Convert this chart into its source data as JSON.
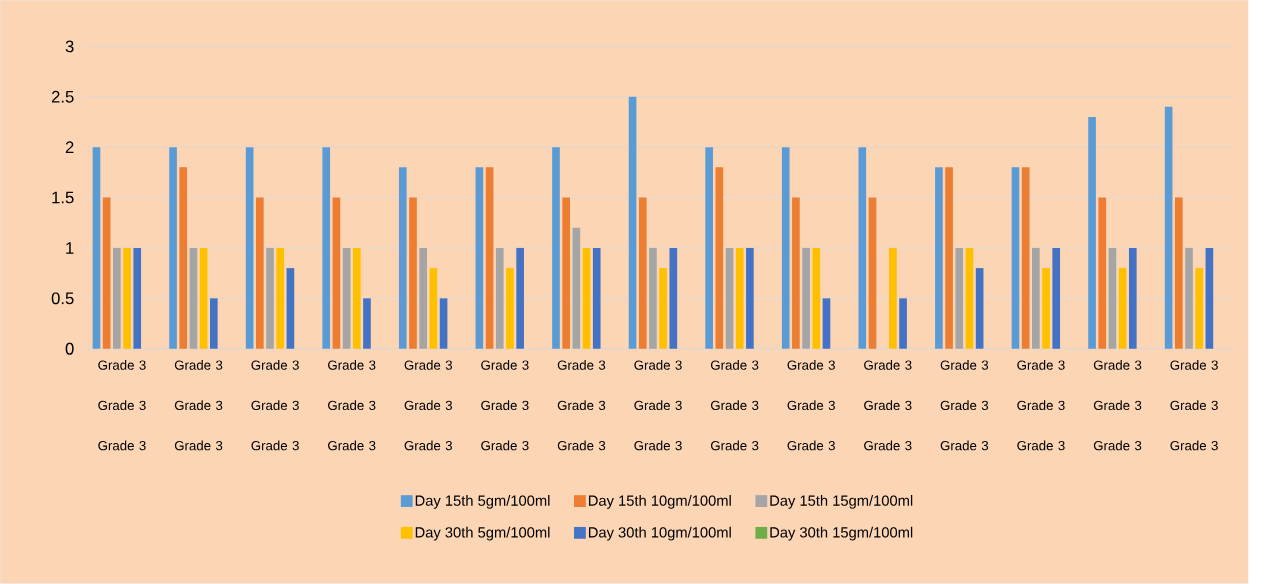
{
  "chart_data": {
    "type": "bar",
    "categories": [
      "Grade 3 Grade 3 Grade 3",
      "Grade 3 Grade 3 Grade 3",
      "Grade 3 Grade 3 Grade 3",
      "Grade 3 Grade 3 Grade 3",
      "Grade 3 Grade 3 Grade 3",
      "Grade 3 Grade 3 Grade 3",
      "Grade 3 Grade 3 Grade 3",
      "Grade 3 Grade 3 Grade 3",
      "Grade 3 Grade 3 Grade 3",
      "Grade 3 Grade 3 Grade 3",
      "Grade 3 Grade 3 Grade 3",
      "Grade 3 Grade 3 Grade 3",
      "Grade 3 Grade 3 Grade 3",
      "Grade 3 Grade 3 Grade 3",
      "Grade 3 Grade 3 Grade 3"
    ],
    "series": [
      {
        "name": "Day 15th 5gm/100ml",
        "color": "#5b9bd5",
        "values": [
          2,
          2,
          2,
          2,
          1.8,
          1.8,
          2,
          2.5,
          2,
          2,
          2,
          1.8,
          1.8,
          2.3,
          2.4
        ]
      },
      {
        "name": "Day 15th 10gm/100ml",
        "color": "#ed7d31",
        "values": [
          1.5,
          1.8,
          1.5,
          1.5,
          1.5,
          1.8,
          1.5,
          1.5,
          1.8,
          1.5,
          1.5,
          1.8,
          1.8,
          1.5,
          1.5
        ]
      },
      {
        "name": "Day 15th 15gm/100ml",
        "color": "#a5a5a5",
        "values": [
          1,
          1,
          1,
          1,
          1,
          1,
          1.2,
          1,
          1,
          1,
          null,
          1,
          1,
          1,
          1
        ]
      },
      {
        "name": "Day 30th 5gm/100ml",
        "color": "#ffc000",
        "values": [
          1,
          1,
          1,
          1,
          0.8,
          0.8,
          1,
          0.8,
          1,
          1,
          1,
          1,
          0.8,
          0.8,
          0.8
        ]
      },
      {
        "name": "Day 30th 10gm/100ml",
        "color": "#4472c4",
        "values": [
          1,
          0.5,
          0.8,
          0.5,
          0.5,
          1,
          1,
          1,
          1,
          0.5,
          0.5,
          0.8,
          1,
          1,
          1
        ]
      },
      {
        "name": "Day 30th 15gm/100ml",
        "color": "#70ad47",
        "values": [
          null,
          null,
          null,
          null,
          null,
          null,
          null,
          null,
          null,
          null,
          null,
          null,
          null,
          null,
          null
        ]
      }
    ],
    "ylim": [
      0,
      3
    ],
    "yticks": [
      0,
      0.5,
      1,
      1.5,
      2,
      2.5,
      3
    ],
    "grid": "y",
    "legend": "bottom"
  }
}
